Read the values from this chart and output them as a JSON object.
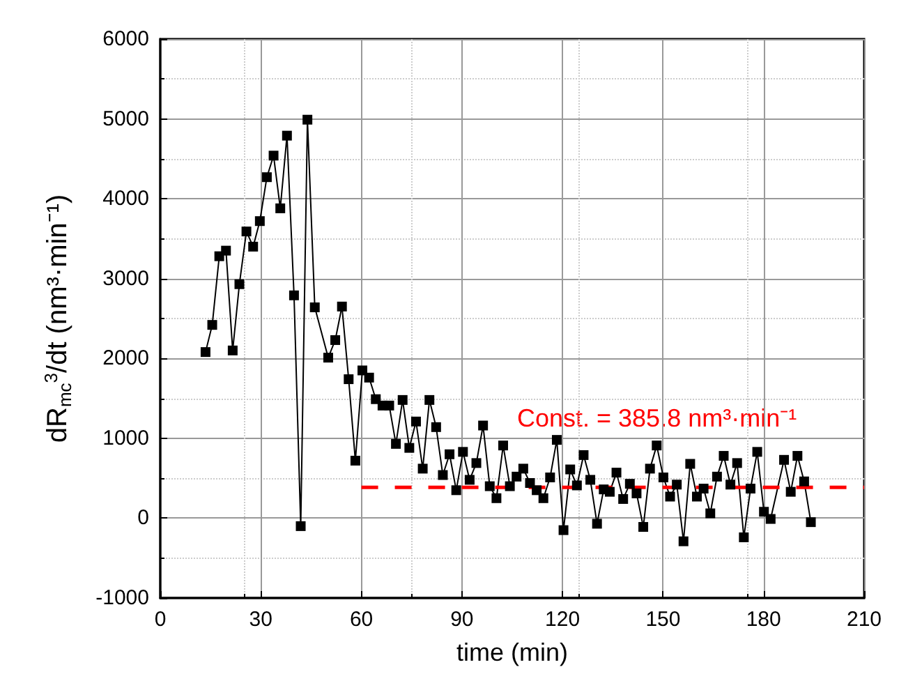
{
  "chart_data": {
    "type": "line",
    "xlabel": "time (min)",
    "ylabel": "dR$_{mc}$$^{3}$/dt (nm³·min⁻¹)",
    "xlim": [
      0,
      210
    ],
    "xticks": [
      0,
      30,
      60,
      90,
      120,
      150,
      180,
      210
    ],
    "ylim": [
      -1000,
      6000
    ],
    "yticks": [
      -1000,
      0,
      1000,
      2000,
      3000,
      4000,
      5000,
      6000
    ],
    "grid": true,
    "marker": "square",
    "line_style": "solid",
    "series": [
      {
        "color": "#000000",
        "x": [
          13.5,
          15.5,
          17.6,
          19.6,
          21.6,
          23.6,
          25.7,
          27.7,
          29.7,
          31.8,
          33.8,
          35.8,
          37.8,
          39.9,
          41.9,
          43.9,
          46.1,
          50.1,
          52.2,
          54.2,
          56.2,
          58.2,
          60.3,
          62.3,
          64.3,
          66.3,
          68.3,
          70.3,
          72.3,
          74.3,
          76.3,
          78.3,
          80.3,
          82.3,
          84.3,
          86.3,
          88.3,
          90.3,
          92.3,
          94.3,
          96.3,
          98.3,
          100.3,
          102.3,
          104.3,
          106.3,
          108.3,
          110.3,
          112.3,
          114.3,
          116.3,
          118.3,
          120.3,
          122.3,
          124.3,
          126.3,
          128.3,
          130.3,
          132.3,
          134.1,
          136.1,
          138.1,
          140.1,
          142.1,
          144.1,
          146.1,
          148.1,
          150.1,
          152.1,
          154.1,
          156.1,
          158.1,
          160.1,
          162.1,
          164.1,
          166.1,
          168.1,
          170.1,
          172.1,
          174.1,
          176.1,
          178.1,
          180.1,
          182.1,
          186.1,
          188.1,
          190.1,
          192.1,
          194.1
        ],
        "values": [
          2080,
          2420,
          3280,
          3350,
          2100,
          2930,
          3590,
          3400,
          3720,
          4270,
          4540,
          3880,
          4790,
          2790,
          -100,
          4990,
          2640,
          2010,
          2230,
          2650,
          1740,
          720,
          1850,
          1760,
          1490,
          1410,
          1410,
          930,
          1480,
          880,
          1210,
          620,
          1480,
          1140,
          540,
          800,
          350,
          830,
          480,
          690,
          1160,
          400,
          250,
          910,
          400,
          520,
          620,
          440,
          350,
          250,
          510,
          980,
          -150,
          610,
          410,
          790,
          480,
          -70,
          360,
          330,
          570,
          240,
          430,
          310,
          -110,
          620,
          910,
          510,
          270,
          420,
          -290,
          680,
          270,
          370,
          60,
          520,
          780,
          420,
          690,
          -240,
          370,
          830,
          80,
          -10,
          730,
          330,
          780,
          460,
          -50
        ]
      },
      {
        "type": "line",
        "color": "#ff0000",
        "marker": "none",
        "line_style": "dashed",
        "x": [
          60,
          210
        ],
        "values": [
          385.8,
          385.8
        ]
      }
    ],
    "annotations": [
      "Const. = 385.8 nm³·min⁻¹"
    ]
  }
}
